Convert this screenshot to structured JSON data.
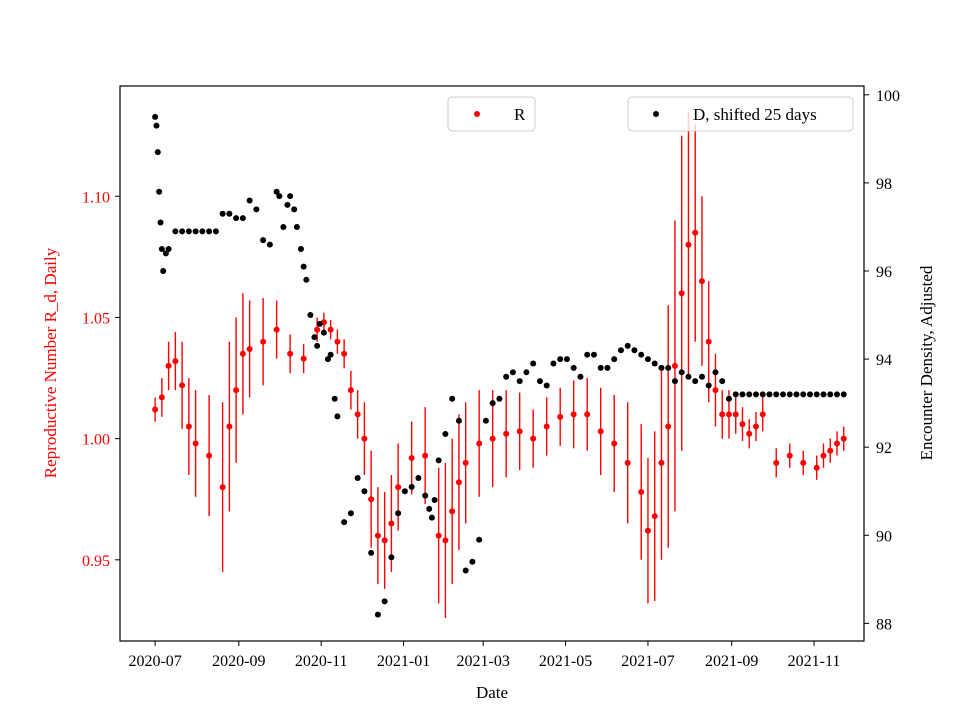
{
  "chart_data": {
    "type": "scatter",
    "title": "",
    "xlabel": "Date",
    "ylabel_left": "Reproductive Number R_d, Daily",
    "ylabel_right": "Encounter Density, Adjusted",
    "x_ticks": [
      "2020-07",
      "2020-09",
      "2020-11",
      "2021-01",
      "2021-03",
      "2021-05",
      "2021-07",
      "2021-09",
      "2021-11"
    ],
    "x_tick_days": [
      0,
      62,
      123,
      184,
      243,
      304,
      365,
      427,
      488
    ],
    "xlim_days": [
      -26,
      525
    ],
    "y_left_ticks": [
      "0.95",
      "1.00",
      "1.05",
      "1.10"
    ],
    "y_left_tick_values": [
      0.95,
      1.0,
      1.05,
      1.1
    ],
    "ylim_left": [
      0.9165,
      1.1455
    ],
    "y_right_ticks": [
      "88",
      "90",
      "92",
      "94",
      "96",
      "98",
      "100"
    ],
    "y_right_tick_values": [
      88,
      90,
      92,
      94,
      96,
      98,
      100
    ],
    "ylim_right": [
      87.6,
      100.2
    ],
    "legend_R": "R",
    "legend_D": "D, shifted 25 days",
    "colors": {
      "R": "#ff0000",
      "D": "#000000",
      "left_axis_text": "#ff0000",
      "right_axis_text": "#000000"
    },
    "series": [
      {
        "name": "R",
        "marker": "dot with vertical error bars",
        "color": "#ff0000",
        "x_days": [
          0,
          5,
          10,
          15,
          20,
          25,
          30,
          40,
          50,
          55,
          60,
          65,
          70,
          80,
          90,
          100,
          110,
          120,
          125,
          130,
          135,
          140,
          145,
          150,
          155,
          160,
          165,
          170,
          175,
          180,
          190,
          200,
          210,
          215,
          220,
          225,
          230,
          240,
          250,
          260,
          270,
          280,
          290,
          300,
          310,
          320,
          330,
          340,
          350,
          360,
          365,
          370,
          375,
          380,
          385,
          390,
          395,
          400,
          405,
          410,
          415,
          420,
          425,
          430,
          435,
          440,
          445,
          450,
          460,
          470,
          480,
          490,
          495,
          500,
          505,
          510
        ],
        "values": [
          1.012,
          1.017,
          1.03,
          1.032,
          1.022,
          1.005,
          0.998,
          0.993,
          0.98,
          1.005,
          1.02,
          1.035,
          1.037,
          1.04,
          1.045,
          1.035,
          1.033,
          1.045,
          1.048,
          1.045,
          1.04,
          1.035,
          1.02,
          1.01,
          1.0,
          0.975,
          0.96,
          0.958,
          0.965,
          0.98,
          0.992,
          0.993,
          0.96,
          0.958,
          0.97,
          0.982,
          0.99,
          0.998,
          1.0,
          1.002,
          1.003,
          1.0,
          1.005,
          1.009,
          1.01,
          1.01,
          1.003,
          0.998,
          0.99,
          0.978,
          0.962,
          0.968,
          0.99,
          1.005,
          1.03,
          1.06,
          1.08,
          1.085,
          1.065,
          1.04,
          1.02,
          1.01,
          1.01,
          1.01,
          1.006,
          1.002,
          1.005,
          1.01,
          0.99,
          0.993,
          0.99,
          0.988,
          0.993,
          0.995,
          0.998,
          1.0
        ],
        "error": [
          0.005,
          0.008,
          0.01,
          0.012,
          0.018,
          0.02,
          0.022,
          0.025,
          0.035,
          0.035,
          0.03,
          0.025,
          0.02,
          0.018,
          0.012,
          0.008,
          0.006,
          0.005,
          0.004,
          0.004,
          0.005,
          0.006,
          0.008,
          0.01,
          0.015,
          0.02,
          0.02,
          0.02,
          0.02,
          0.018,
          0.015,
          0.02,
          0.028,
          0.032,
          0.03,
          0.028,
          0.025,
          0.022,
          0.02,
          0.018,
          0.016,
          0.012,
          0.012,
          0.012,
          0.014,
          0.015,
          0.018,
          0.02,
          0.025,
          0.028,
          0.03,
          0.035,
          0.04,
          0.05,
          0.06,
          0.065,
          0.055,
          0.045,
          0.035,
          0.025,
          0.015,
          0.01,
          0.01,
          0.008,
          0.007,
          0.006,
          0.006,
          0.007,
          0.006,
          0.005,
          0.005,
          0.005,
          0.005,
          0.005,
          0.005,
          0.005
        ]
      },
      {
        "name": "D, shifted 25 days",
        "marker": "dot",
        "color": "#000000",
        "x_days": [
          0,
          1,
          2,
          3,
          4,
          5,
          6,
          8,
          10,
          15,
          20,
          25,
          30,
          35,
          40,
          45,
          50,
          55,
          60,
          65,
          70,
          75,
          80,
          85,
          90,
          92,
          95,
          98,
          100,
          103,
          105,
          108,
          110,
          112,
          115,
          118,
          120,
          122,
          125,
          128,
          130,
          133,
          135,
          140,
          145,
          150,
          155,
          160,
          165,
          170,
          175,
          180,
          185,
          190,
          195,
          200,
          203,
          205,
          207,
          210,
          215,
          220,
          225,
          230,
          235,
          240,
          245,
          250,
          255,
          260,
          265,
          270,
          275,
          280,
          285,
          290,
          295,
          300,
          305,
          310,
          315,
          320,
          325,
          330,
          335,
          340,
          345,
          350,
          355,
          360,
          365,
          370,
          375,
          380,
          385,
          390,
          395,
          400,
          405,
          410,
          415,
          420,
          425,
          430,
          435,
          440,
          445,
          450,
          455,
          460,
          465,
          470,
          475,
          480,
          485,
          490,
          495,
          500,
          505,
          510
        ],
        "values": [
          99.5,
          99.3,
          98.7,
          97.8,
          97.1,
          96.5,
          96.0,
          96.4,
          96.5,
          96.9,
          96.9,
          96.9,
          96.9,
          96.9,
          96.9,
          96.9,
          97.3,
          97.3,
          97.2,
          97.2,
          97.6,
          97.4,
          96.7,
          96.6,
          97.8,
          97.7,
          97.0,
          97.5,
          97.7,
          97.4,
          97.0,
          96.5,
          96.1,
          95.8,
          95.0,
          94.5,
          94.3,
          94.8,
          94.6,
          94.0,
          94.1,
          93.1,
          92.7,
          90.3,
          90.5,
          91.3,
          91.0,
          89.6,
          88.2,
          88.5,
          89.5,
          90.5,
          91.0,
          91.1,
          91.3,
          90.9,
          90.6,
          90.4,
          90.8,
          91.7,
          92.3,
          93.1,
          92.6,
          89.2,
          89.4,
          89.9,
          92.6,
          93.0,
          93.1,
          93.6,
          93.7,
          93.5,
          93.7,
          93.9,
          93.5,
          93.4,
          93.9,
          94.0,
          94.0,
          93.8,
          93.6,
          94.1,
          94.1,
          93.8,
          93.8,
          94.0,
          94.2,
          94.3,
          94.2,
          94.1,
          94.0,
          93.9,
          93.8,
          93.8,
          93.5,
          93.7,
          93.6,
          93.5,
          93.6,
          93.4,
          93.7,
          93.5,
          93.1,
          93.2,
          93.2,
          93.2,
          93.2,
          93.2,
          93.2,
          93.2,
          93.2,
          93.2,
          93.2,
          93.2,
          93.2,
          93.2,
          93.2,
          93.2,
          93.2,
          93.2
        ]
      }
    ]
  }
}
